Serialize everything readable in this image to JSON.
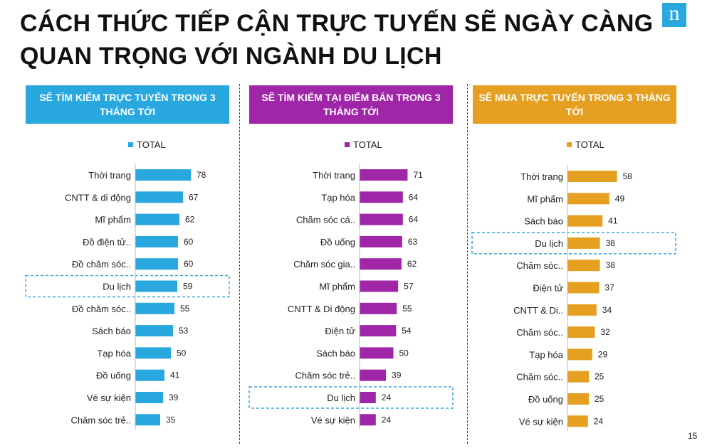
{
  "title": "CÁCH THỨC TIẾP CẬN TRỰC TUYẾN SẼ NGÀY CÀNG QUAN TRỌNG VỚI NGÀNH DU LỊCH",
  "logo_text": "n",
  "page_number": "15",
  "colors": {
    "blue": "#29a8e0",
    "purple": "#a026a8",
    "gold": "#e5a021",
    "highlight": "#3aa7d9"
  },
  "chart_data": [
    {
      "type": "bar",
      "title": "SẼ TÌM KIẾM TRỰC TUYẾN TRONG 3 THÁNG TỚI",
      "legend": "TOTAL",
      "color": "#29a8e0",
      "orientation": "horizontal",
      "categories": [
        "Thời trang",
        "CNTT & di động",
        "Mĩ phẩm",
        "Đồ điện tử..",
        "Đồ chăm sóc..",
        "Du lịch",
        "Đồ chăm sóc..",
        "Sách báo",
        "Tạp hóa",
        "Đồ uống",
        "Vé sự kiện",
        "Chăm sóc trẻ.."
      ],
      "values": [
        78,
        67,
        62,
        60,
        60,
        59,
        55,
        53,
        50,
        41,
        39,
        35
      ],
      "highlight": "Du lịch"
    },
    {
      "type": "bar",
      "title": "SẼ TÌM KIẾM TẠI ĐIỂM BÁN TRONG 3 THÁNG TỚI",
      "legend": "TOTAL",
      "color": "#a026a8",
      "orientation": "horizontal",
      "categories": [
        "Thời trang",
        "Tạp hóa",
        "Chăm sóc cá..",
        "Đồ uống",
        "Chăm sóc gia..",
        "Mĩ phẩm",
        "CNTT & Di động",
        "Điện tử",
        "Sách báo",
        "Chăm sóc trẻ..",
        "Du lịch",
        "Vé sự kiện"
      ],
      "values": [
        71,
        64,
        64,
        63,
        62,
        57,
        55,
        54,
        50,
        39,
        24,
        24
      ],
      "highlight": "Du lịch"
    },
    {
      "type": "bar",
      "title": "SẼ MUA TRỰC TUYẾN TRONG 3 THÁNG TỚI",
      "legend": "TOTAL",
      "color": "#e5a021",
      "orientation": "horizontal",
      "categories": [
        "Thời trang",
        "Mĩ phẩm",
        "Sách báo",
        "Du lịch",
        "Chăm sóc..",
        "Điện tử",
        "CNTT & Di..",
        "Chăm sóc..",
        "Tạp hóa",
        "Chăm sóc..",
        "Đồ uống",
        "Vé sự kiện"
      ],
      "values": [
        58,
        49,
        41,
        38,
        38,
        37,
        34,
        32,
        29,
        25,
        25,
        24
      ],
      "highlight": "Du lịch"
    }
  ]
}
